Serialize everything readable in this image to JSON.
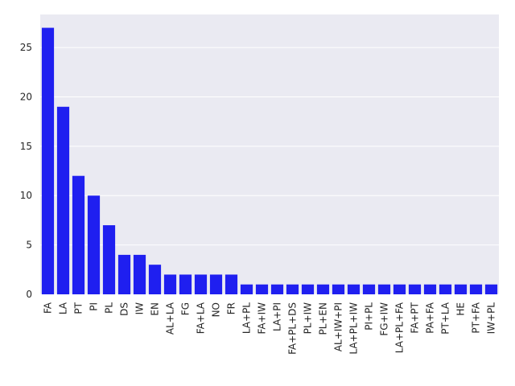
{
  "chart_data": {
    "type": "bar",
    "categories": [
      "FA",
      "LA",
      "PT",
      "PI",
      "PL",
      "DS",
      "IW",
      "EN",
      "AL+LA",
      "FG",
      "FA+LA",
      "NO",
      "FR",
      "LA+PL",
      "FA+IW",
      "LA+PI",
      "FA+PL+DS",
      "PL+IW",
      "PL+EN",
      "AL+IW+PI",
      "LA+PL+IW",
      "PI+PL",
      "FG+IW",
      "LA+PL+FA",
      "FA+PT",
      "PA+FA",
      "PT+LA",
      "HE",
      "PT+FA",
      "IW+PL"
    ],
    "values": [
      27,
      19,
      12,
      10,
      7,
      4,
      4,
      3,
      2,
      2,
      2,
      2,
      2,
      1,
      1,
      1,
      1,
      1,
      1,
      1,
      1,
      1,
      1,
      1,
      1,
      1,
      1,
      1,
      1,
      1
    ],
    "color": "#1f1ff0",
    "ylim": [
      0,
      28.35
    ],
    "yticks": [
      0,
      5,
      10,
      15,
      20,
      25
    ],
    "grid": true
  }
}
